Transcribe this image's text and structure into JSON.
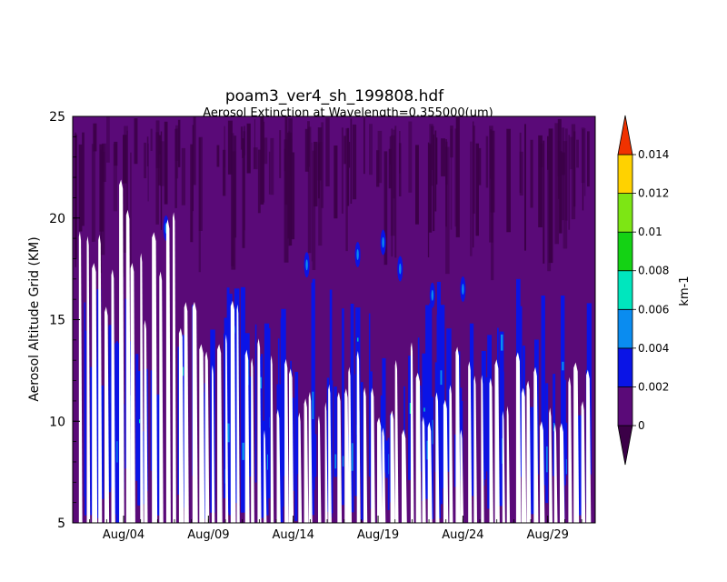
{
  "chart_data": {
    "type": "heatmap",
    "title": "poam3_ver4_sh_199808.hdf",
    "subtitle": "Aerosol Extinction at Wavelength=0.355000(um)",
    "ylabel": "Aerosol Altitude Grid (KM)",
    "xlabel": "",
    "ylim": [
      5,
      25
    ],
    "yticks": [
      "5",
      "10",
      "15",
      "20",
      "25"
    ],
    "x_range_days": [
      1,
      31.8
    ],
    "xticks": [
      {
        "label": "Aug/04",
        "day": 4
      },
      {
        "label": "Aug/09",
        "day": 9
      },
      {
        "label": "Aug/14",
        "day": 14
      },
      {
        "label": "Aug/19",
        "day": 19
      },
      {
        "label": "Aug/24",
        "day": 24
      },
      {
        "label": "Aug/29",
        "day": 29
      }
    ],
    "colorbar": {
      "unit": "km-1",
      "levels": [
        0,
        0.002,
        0.004,
        0.006,
        0.008,
        0.01,
        0.012,
        0.014
      ],
      "level_labels": [
        "0",
        "0.002",
        "0.004",
        "0.006",
        "0.008",
        "0.01",
        "0.012",
        "0.014"
      ],
      "colors": [
        "#3b0047",
        "#5a0a78",
        "#0a14e6",
        "#0a8cf0",
        "#00e6be",
        "#14d214",
        "#7de614",
        "#ffd200",
        "#f03200"
      ]
    },
    "description_values": {
      "background_level": "0-0.002",
      "gaps_color": "#ffffff"
    }
  }
}
